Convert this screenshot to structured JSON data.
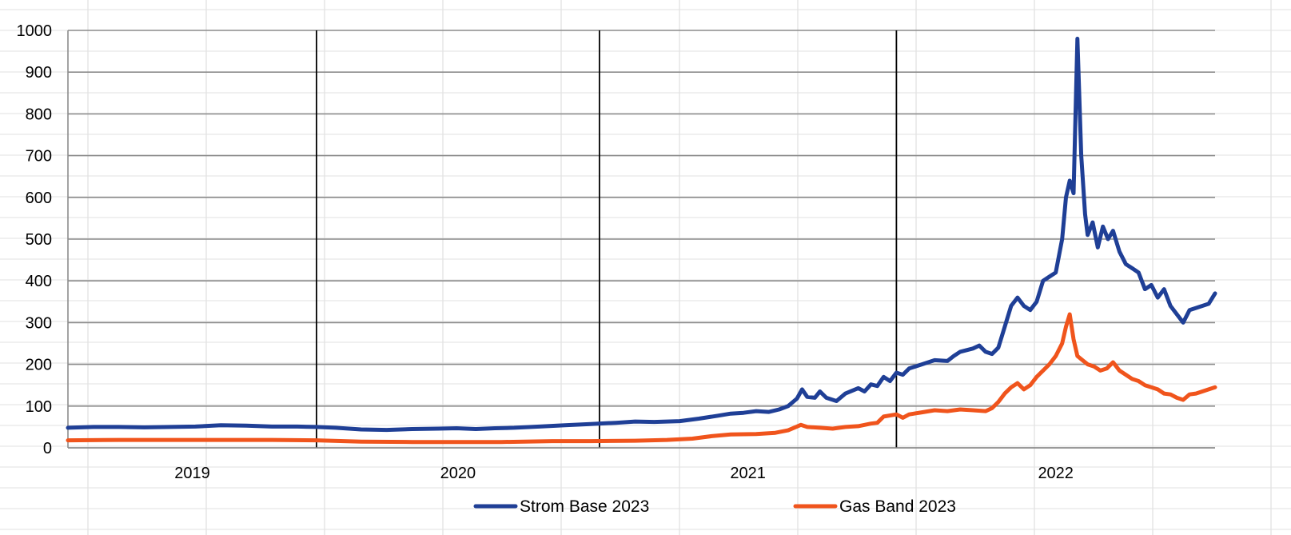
{
  "chart_data": {
    "type": "line",
    "title": "",
    "xlabel": "",
    "ylabel": "",
    "ylim": [
      0,
      1000
    ],
    "y_ticks": [
      "0",
      "100",
      "200",
      "300",
      "400",
      "500",
      "600",
      "700",
      "800",
      "900",
      "1000"
    ],
    "x_ticks": [
      "2019",
      "2020",
      "2021",
      "2022"
    ],
    "year_separators": [
      "2019/2020",
      "2020/2021",
      "2021/2022"
    ],
    "grid": true,
    "legend": "bottom",
    "series": [
      {
        "name": "Strom Base 2023",
        "color": "#1f3f96",
        "points": [
          [
            0,
            48
          ],
          [
            2,
            50
          ],
          [
            4,
            50
          ],
          [
            6,
            49
          ],
          [
            8,
            50
          ],
          [
            10,
            51
          ],
          [
            12,
            54
          ],
          [
            14,
            53
          ],
          [
            16,
            51
          ],
          [
            18,
            51
          ],
          [
            19.5,
            50
          ],
          [
            21,
            48
          ],
          [
            23,
            44
          ],
          [
            25,
            43
          ],
          [
            27,
            45
          ],
          [
            29,
            46
          ],
          [
            30.5,
            47
          ],
          [
            32,
            45
          ],
          [
            33.5,
            47
          ],
          [
            35,
            48
          ],
          [
            37,
            51
          ],
          [
            39,
            54
          ],
          [
            41,
            57
          ],
          [
            43,
            60
          ],
          [
            44.5,
            63
          ],
          [
            46,
            62
          ],
          [
            48,
            64
          ],
          [
            49.5,
            70
          ],
          [
            51,
            77
          ],
          [
            52,
            82
          ],
          [
            53,
            84
          ],
          [
            54,
            88
          ],
          [
            55,
            86
          ],
          [
            55.8,
            92
          ],
          [
            56.5,
            100
          ],
          [
            57.2,
            118
          ],
          [
            57.6,
            140
          ],
          [
            58,
            122
          ],
          [
            58.6,
            120
          ],
          [
            59,
            135
          ],
          [
            59.5,
            120
          ],
          [
            60.3,
            112
          ],
          [
            61,
            130
          ],
          [
            62,
            143
          ],
          [
            62.5,
            135
          ],
          [
            63,
            152
          ],
          [
            63.5,
            148
          ],
          [
            64,
            170
          ],
          [
            64.5,
            160
          ],
          [
            65,
            180
          ],
          [
            65.5,
            175
          ],
          [
            66,
            190
          ],
          [
            67,
            200
          ],
          [
            68,
            210
          ],
          [
            69,
            208
          ],
          [
            69.5,
            220
          ],
          [
            70,
            230
          ],
          [
            71,
            238
          ],
          [
            71.5,
            245
          ],
          [
            72,
            230
          ],
          [
            72.5,
            225
          ],
          [
            73,
            240
          ],
          [
            73.5,
            290
          ],
          [
            74,
            340
          ],
          [
            74.5,
            360
          ],
          [
            75,
            340
          ],
          [
            75.5,
            330
          ],
          [
            76,
            350
          ],
          [
            76.5,
            400
          ],
          [
            77,
            410
          ],
          [
            77.5,
            420
          ],
          [
            78,
            500
          ],
          [
            78.3,
            600
          ],
          [
            78.6,
            640
          ],
          [
            78.9,
            610
          ],
          [
            79.2,
            980
          ],
          [
            79.5,
            700
          ],
          [
            79.8,
            560
          ],
          [
            80,
            510
          ],
          [
            80.4,
            540
          ],
          [
            80.8,
            480
          ],
          [
            81.2,
            530
          ],
          [
            81.6,
            500
          ],
          [
            82,
            520
          ],
          [
            82.5,
            470
          ],
          [
            83,
            440
          ],
          [
            83.5,
            430
          ],
          [
            84,
            420
          ],
          [
            84.5,
            380
          ],
          [
            85,
            390
          ],
          [
            85.5,
            360
          ],
          [
            86,
            380
          ],
          [
            86.5,
            340
          ],
          [
            87,
            320
          ],
          [
            87.5,
            300
          ],
          [
            88,
            330
          ],
          [
            88.5,
            335
          ],
          [
            89,
            340
          ],
          [
            89.5,
            345
          ],
          [
            90,
            370
          ]
        ]
      },
      {
        "name": "Gas Band 2023",
        "color": "#f0541c",
        "points": [
          [
            0,
            18
          ],
          [
            4,
            19
          ],
          [
            8,
            19
          ],
          [
            12,
            19
          ],
          [
            16,
            19
          ],
          [
            19.5,
            18
          ],
          [
            23,
            15
          ],
          [
            27,
            14
          ],
          [
            30.5,
            14
          ],
          [
            34,
            14
          ],
          [
            38,
            16
          ],
          [
            41,
            16
          ],
          [
            44.5,
            17
          ],
          [
            47,
            19
          ],
          [
            49,
            22
          ],
          [
            50.5,
            28
          ],
          [
            52,
            32
          ],
          [
            54,
            33
          ],
          [
            55.5,
            36
          ],
          [
            56.5,
            42
          ],
          [
            57.5,
            55
          ],
          [
            58,
            50
          ],
          [
            59,
            48
          ],
          [
            60,
            46
          ],
          [
            61,
            50
          ],
          [
            62,
            52
          ],
          [
            63,
            58
          ],
          [
            63.5,
            60
          ],
          [
            64,
            75
          ],
          [
            65,
            80
          ],
          [
            65.5,
            72
          ],
          [
            66,
            80
          ],
          [
            67,
            85
          ],
          [
            68,
            90
          ],
          [
            69,
            88
          ],
          [
            70,
            92
          ],
          [
            71,
            90
          ],
          [
            72,
            88
          ],
          [
            72.5,
            95
          ],
          [
            73,
            110
          ],
          [
            73.5,
            130
          ],
          [
            74,
            145
          ],
          [
            74.5,
            155
          ],
          [
            75,
            140
          ],
          [
            75.5,
            150
          ],
          [
            76,
            170
          ],
          [
            77,
            200
          ],
          [
            77.5,
            220
          ],
          [
            78,
            250
          ],
          [
            78.3,
            290
          ],
          [
            78.6,
            320
          ],
          [
            78.9,
            260
          ],
          [
            79.2,
            220
          ],
          [
            79.6,
            210
          ],
          [
            80,
            200
          ],
          [
            80.5,
            195
          ],
          [
            81,
            185
          ],
          [
            81.5,
            190
          ],
          [
            82,
            205
          ],
          [
            82.5,
            185
          ],
          [
            83,
            175
          ],
          [
            83.5,
            165
          ],
          [
            84,
            160
          ],
          [
            84.5,
            150
          ],
          [
            85,
            145
          ],
          [
            85.5,
            140
          ],
          [
            86,
            130
          ],
          [
            86.5,
            128
          ],
          [
            87,
            120
          ],
          [
            87.5,
            115
          ],
          [
            88,
            128
          ],
          [
            88.5,
            130
          ],
          [
            89,
            135
          ],
          [
            89.5,
            140
          ],
          [
            90,
            145
          ]
        ]
      }
    ]
  }
}
